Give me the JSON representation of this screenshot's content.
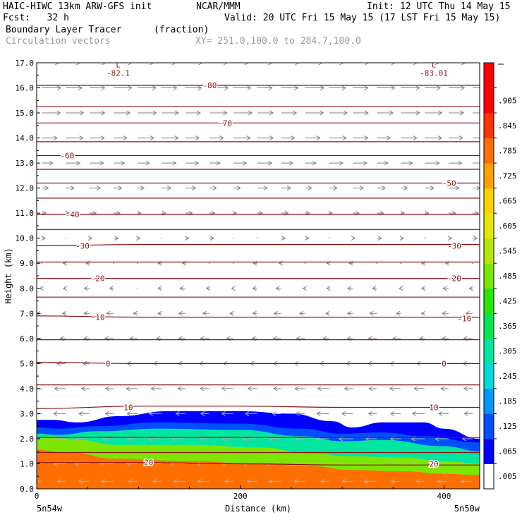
{
  "header": {
    "model": "HAIC-HIWC 13km ARW-GFS init",
    "center": "NCAR/MMM",
    "init": "Init: 12 UTC Thu 14 May 15",
    "fcst": "Fcst:   32 h",
    "valid": "Valid: 20 UTC Fri 15 May 15 (17 LST Fri 15 May 15)",
    "field": "Boundary Layer Tracer",
    "units": "(fraction)",
    "vectors": "Circulation vectors",
    "xy": "XY= 251.0,100.0 to 284.7,100.0"
  },
  "colors": {
    "contour": "#8b1010",
    "vector": "#808080"
  },
  "chart_data": {
    "type": "heatmap",
    "ylabel": "Height (km)",
    "xlabel": "Distance (km)",
    "xlim": [
      0,
      435
    ],
    "ylim": [
      0,
      17
    ],
    "x_ticks": [
      "0",
      "200",
      "400"
    ],
    "x_tick_values": [
      0,
      200,
      400
    ],
    "y_ticks": [
      "0.0",
      "1.0",
      "2.0",
      "3.0",
      "4.0",
      "5.0",
      "6.0",
      "7.0",
      "8.0",
      "9.0",
      "10.0",
      "11.0",
      "12.0",
      "13.0",
      "14.0",
      "15.0",
      "16.0",
      "17.0"
    ],
    "x_start_label": "5n54w",
    "x_end_label": "5n50w",
    "colorbar": {
      "labels": [
        ".005",
        ".065",
        ".125",
        ".185",
        ".245",
        ".305",
        ".365",
        ".425",
        ".485",
        ".545",
        ".605",
        ".665",
        ".725",
        ".785",
        ".845",
        ".905"
      ],
      "colors": [
        "#ffffff",
        "#0000ff",
        "#0050ff",
        "#0096ff",
        "#00dcdc",
        "#00e6a0",
        "#00e650",
        "#28e600",
        "#7ce600",
        "#b4e600",
        "#e6e600",
        "#ffd200",
        "#ffa000",
        "#ff6e00",
        "#ff3200",
        "#ff0000",
        "#ff0000"
      ]
    },
    "tracer_levels": [
      {
        "value": 0.035,
        "x": [
          0,
          15,
          40,
          80,
          130,
          200,
          250,
          290,
          310,
          340,
          380,
          400,
          435
        ],
        "top": [
          2.75,
          2.75,
          2.65,
          2.9,
          3.1,
          3.1,
          3.0,
          2.7,
          2.45,
          2.65,
          2.65,
          2.4,
          2.0
        ]
      },
      {
        "value": 0.1,
        "x": [
          0,
          20,
          60,
          120,
          200,
          260,
          300,
          340,
          380,
          435
        ],
        "top": [
          2.45,
          2.4,
          2.5,
          2.65,
          2.6,
          2.4,
          2.2,
          2.25,
          2.1,
          1.85
        ]
      },
      {
        "value": 0.25,
        "x": [
          0,
          20,
          60,
          120,
          200,
          260,
          300,
          340,
          400,
          435
        ],
        "top": [
          2.2,
          2.15,
          2.3,
          2.4,
          2.35,
          2.1,
          1.9,
          1.95,
          1.7,
          1.5
        ]
      },
      {
        "value": 0.45,
        "x": [
          0,
          15,
          40,
          80,
          150,
          220,
          270,
          310,
          360,
          400,
          435
        ],
        "top": [
          2.0,
          2.1,
          1.95,
          1.75,
          1.75,
          1.65,
          1.4,
          1.3,
          1.25,
          1.1,
          1.0
        ]
      },
      {
        "value": 0.75,
        "x": [
          0,
          30,
          80,
          150,
          220,
          270,
          310,
          360,
          400,
          435
        ],
        "top": [
          1.55,
          1.45,
          1.2,
          1.1,
          1.0,
          0.9,
          0.75,
          0.7,
          0.6,
          0.55
        ]
      }
    ],
    "temperature_contours": [
      {
        "label": "20",
        "labels": [
          {
            "x": 110,
            "y": 1.05
          },
          {
            "x": 390,
            "y": 1.0
          }
        ],
        "x": [
          0,
          100,
          200,
          300,
          435
        ],
        "y": [
          1.05,
          1.05,
          1.0,
          0.95,
          0.95
        ]
      },
      {
        "label": "10",
        "labels": [
          {
            "x": 90,
            "y": 3.25
          },
          {
            "x": 390,
            "y": 3.25
          }
        ],
        "x": [
          0,
          100,
          200,
          300,
          435
        ],
        "y": [
          3.2,
          3.3,
          3.3,
          3.25,
          3.25
        ]
      },
      {
        "label": "0",
        "labels": [
          {
            "x": 70,
            "y": 5.0
          },
          {
            "x": 400,
            "y": 5.0
          }
        ],
        "x": [
          0,
          100,
          200,
          300,
          435
        ],
        "y": [
          5.05,
          5.0,
          5.0,
          5.0,
          5.0
        ]
      },
      {
        "label": "-10",
        "labels": [
          {
            "x": 60,
            "y": 6.85
          },
          {
            "x": 420,
            "y": 6.8
          }
        ],
        "x": [
          0,
          100,
          200,
          300,
          435
        ],
        "y": [
          6.9,
          6.85,
          6.85,
          6.85,
          6.85
        ]
      },
      {
        "label": "-20",
        "labels": [
          {
            "x": 60,
            "y": 8.4
          },
          {
            "x": 410,
            "y": 8.4
          }
        ],
        "x": [
          0,
          100,
          200,
          300,
          435
        ],
        "y": [
          8.4,
          8.4,
          8.4,
          8.4,
          8.4
        ]
      },
      {
        "label": "-30",
        "labels": [
          {
            "x": 45,
            "y": 9.7
          },
          {
            "x": 410,
            "y": 9.7
          }
        ],
        "x": [
          0,
          100,
          200,
          300,
          435
        ],
        "y": [
          9.7,
          9.75,
          9.75,
          9.75,
          9.75
        ]
      },
      {
        "label": "-40",
        "labels": [
          {
            "x": 35,
            "y": 10.95
          }
        ],
        "x": [
          0,
          100,
          200,
          300,
          435
        ],
        "y": [
          10.95,
          10.95,
          10.95,
          10.95,
          10.95
        ]
      },
      {
        "label": "-50",
        "labels": [
          {
            "x": 405,
            "y": 12.2
          }
        ],
        "x": [
          0,
          100,
          200,
          300,
          435
        ],
        "y": [
          12.2,
          12.2,
          12.2,
          12.2,
          12.2
        ]
      },
      {
        "label": "-60",
        "labels": [
          {
            "x": 30,
            "y": 13.3
          }
        ],
        "x": [
          0,
          100,
          200,
          300,
          435
        ],
        "y": [
          13.3,
          13.3,
          13.3,
          13.3,
          13.3
        ]
      },
      {
        "label": "-70",
        "labels": [
          {
            "x": 185,
            "y": 14.6
          }
        ],
        "x": [
          0,
          100,
          200,
          300,
          435
        ],
        "y": [
          14.6,
          14.6,
          14.6,
          14.6,
          14.6
        ]
      },
      {
        "label": "-80",
        "labels": [
          {
            "x": 170,
            "y": 16.1
          }
        ],
        "x": [
          0,
          100,
          200,
          300,
          435
        ],
        "y": [
          16.1,
          16.1,
          16.1,
          16.1,
          16.1
        ]
      },
      {
        "label": "",
        "labels": [],
        "x": [
          0,
          435
        ],
        "y": [
          2.05,
          2.05
        ]
      },
      {
        "label": "",
        "labels": [],
        "x": [
          0,
          435
        ],
        "y": [
          4.15,
          4.15
        ]
      },
      {
        "label": "",
        "labels": [],
        "x": [
          0,
          435
        ],
        "y": [
          5.95,
          5.95
        ]
      },
      {
        "label": "",
        "labels": [],
        "x": [
          0,
          435
        ],
        "y": [
          7.65,
          7.65
        ]
      },
      {
        "label": "",
        "labels": [],
        "x": [
          0,
          435
        ],
        "y": [
          9.05,
          9.05
        ]
      },
      {
        "label": "",
        "labels": [],
        "x": [
          0,
          435
        ],
        "y": [
          10.35,
          10.35
        ]
      },
      {
        "label": "",
        "labels": [],
        "x": [
          0,
          435
        ],
        "y": [
          11.6,
          11.6
        ]
      },
      {
        "label": "",
        "labels": [],
        "x": [
          0,
          435
        ],
        "y": [
          12.75,
          12.75
        ]
      },
      {
        "label": "",
        "labels": [],
        "x": [
          0,
          435
        ],
        "y": [
          13.85,
          13.85
        ]
      },
      {
        "label": "",
        "labels": [],
        "x": [
          0,
          435
        ],
        "y": [
          15.25,
          15.25
        ]
      },
      {
        "label": "",
        "labels": [],
        "x": [
          0,
          435
        ],
        "y": [
          1.45,
          1.45
        ]
      }
    ],
    "minima": [
      {
        "symbol": "L",
        "value": "-82.1",
        "x": 80,
        "y": 16.65
      },
      {
        "symbol": "L",
        "value": "-83.01",
        "x": 390,
        "y": 16.65
      }
    ],
    "wind_profile": [
      {
        "z": 0.3,
        "u": -0.6
      },
      {
        "z": 1.0,
        "u": -0.75
      },
      {
        "z": 2.0,
        "u": -0.7
      },
      {
        "z": 3.0,
        "u": -0.6
      },
      {
        "z": 4.0,
        "u": -0.55
      },
      {
        "z": 5.0,
        "u": -0.5
      },
      {
        "z": 6.0,
        "u": -0.4
      },
      {
        "z": 7.0,
        "u": -0.3
      },
      {
        "z": 8.0,
        "u": -0.2
      },
      {
        "z": 9.0,
        "u": -0.1
      },
      {
        "z": 10.0,
        "u": 0.15
      },
      {
        "z": 11.0,
        "u": 0.3
      },
      {
        "z": 12.0,
        "u": 0.5
      },
      {
        "z": 13.0,
        "u": 0.75
      },
      {
        "z": 14.0,
        "u": 0.9
      },
      {
        "z": 15.0,
        "u": 1.0
      },
      {
        "z": 16.0,
        "u": 1.0
      },
      {
        "z": 17.0,
        "u": 0.95
      }
    ]
  }
}
